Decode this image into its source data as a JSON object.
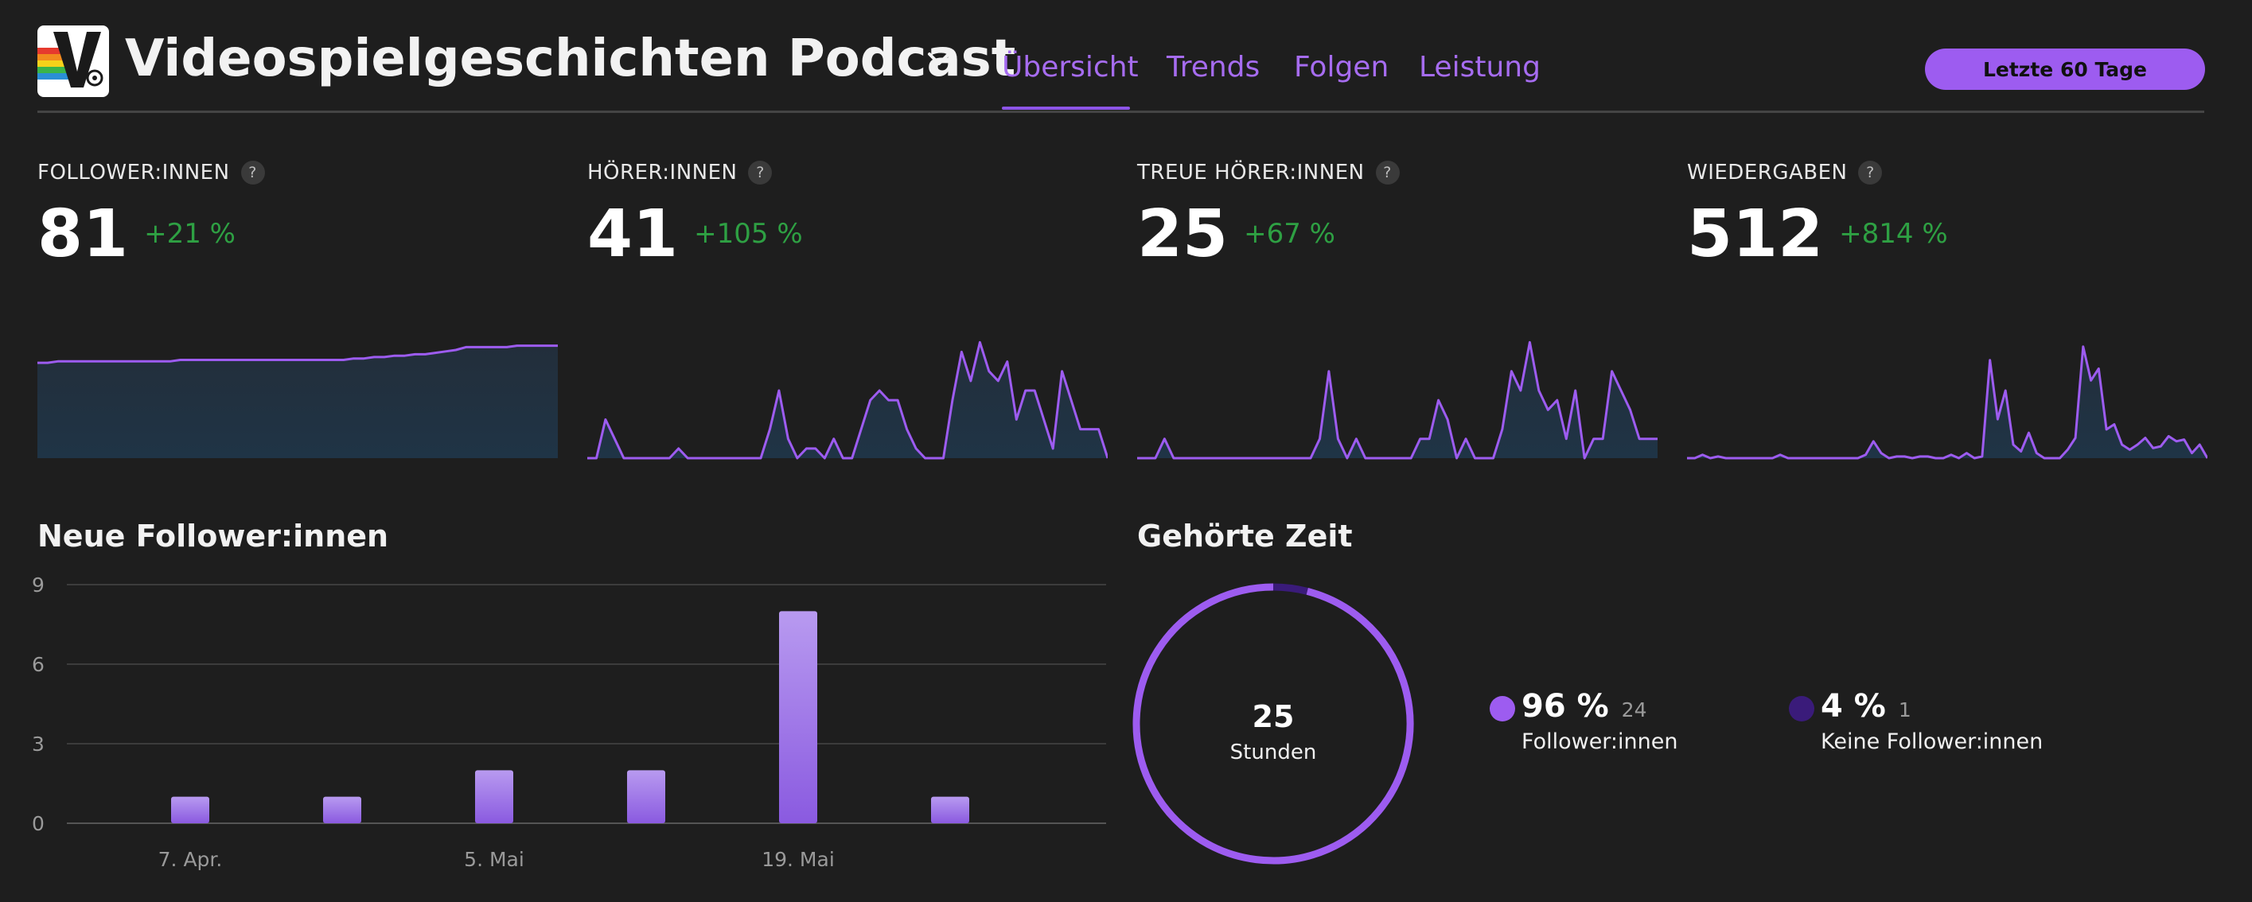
{
  "header": {
    "title": "Videospielgeschichten Podcast",
    "tabs": [
      {
        "label": "Übersicht",
        "active": true
      },
      {
        "label": "Trends",
        "active": false
      },
      {
        "label": "Folgen",
        "active": false
      },
      {
        "label": "Leistung",
        "active": false
      }
    ],
    "range_label": "Letzte 60 Tage"
  },
  "colors": {
    "accent": "#9d5cf0",
    "positive": "#2ea043",
    "background": "#1e1e1e",
    "non_follower": "#3a1b7a"
  },
  "icons": {
    "logo": "podcast-logo",
    "dropdown": "chevron-down-icon",
    "help": "question-mark-icon"
  },
  "stats": [
    {
      "label": "FOLLOWER:INNEN",
      "value": "81",
      "delta": "+21 %"
    },
    {
      "label": "HÖRER:INNEN",
      "value": "41",
      "delta": "+105 %"
    },
    {
      "label": "TREUE HÖRER:INNEN",
      "value": "25",
      "delta": "+67 %"
    },
    {
      "label": "WIEDERGABEN",
      "value": "512",
      "delta": "+814 %"
    }
  ],
  "new_followers_title": "Neue Follower:innen",
  "listened_time_title": "Gehörte Zeit",
  "donut": {
    "center_value": "25",
    "center_label": "Stunden",
    "legend": [
      {
        "pct": "96 %",
        "count": "24",
        "label": "Follower:innen"
      },
      {
        "pct": "4 %",
        "count": "1",
        "label": "Keine Follower:innen"
      }
    ]
  },
  "chart_data": [
    {
      "type": "area",
      "series": [
        {
          "values": [
            67,
            67,
            68,
            68,
            68,
            68,
            68,
            68,
            68,
            68,
            68,
            68,
            68,
            68,
            69,
            69,
            69,
            69,
            69,
            69,
            69,
            69,
            69,
            69,
            69,
            69,
            69,
            69,
            69,
            69,
            69,
            70,
            70,
            71,
            71,
            72,
            72,
            73,
            73,
            74,
            75,
            76,
            78,
            78,
            78,
            78,
            78,
            79,
            79,
            79,
            79,
            79
          ]
        }
      ],
      "ylim": [
        0,
        95
      ]
    },
    {
      "type": "area",
      "series": [
        {
          "values": [
            0,
            0,
            4,
            2,
            0,
            0,
            0,
            0,
            0,
            0,
            1,
            0,
            0,
            0,
            0,
            0,
            0,
            0,
            0,
            0,
            3,
            7,
            2,
            0,
            1,
            1,
            0,
            2,
            0,
            0,
            3,
            6,
            7,
            6,
            6,
            3,
            1,
            0,
            0,
            0,
            6,
            11,
            8,
            12,
            9,
            8,
            10,
            4,
            7,
            7,
            4,
            1,
            9,
            6,
            3,
            3,
            3,
            0
          ]
        }
      ],
      "ylim": [
        0,
        14
      ]
    },
    {
      "type": "area",
      "series": [
        {
          "values": [
            0,
            0,
            0,
            2,
            0,
            0,
            0,
            0,
            0,
            0,
            0,
            0,
            0,
            0,
            0,
            0,
            0,
            0,
            0,
            0,
            2,
            9,
            2,
            0,
            2,
            0,
            0,
            0,
            0,
            0,
            0,
            2,
            2,
            6,
            4,
            0,
            2,
            0,
            0,
            0,
            3,
            9,
            7,
            12,
            7,
            5,
            6,
            2,
            7,
            0,
            2,
            2,
            9,
            7,
            5,
            2,
            2,
            2
          ]
        }
      ],
      "ylim": [
        0,
        14
      ]
    },
    {
      "type": "area",
      "series": [
        {
          "values": [
            0,
            0,
            2,
            0,
            1,
            0,
            0,
            0,
            0,
            0,
            0,
            0,
            2,
            0,
            0,
            0,
            0,
            0,
            0,
            0,
            0,
            0,
            0,
            2,
            10,
            3,
            0,
            1,
            1,
            0,
            1,
            1,
            0,
            0,
            2,
            0,
            3,
            0,
            1,
            58,
            23,
            40,
            8,
            4,
            15,
            3,
            0,
            0,
            0,
            5,
            12,
            66,
            46,
            53,
            17,
            20,
            8,
            5,
            8,
            12,
            6,
            7,
            13,
            10,
            11,
            3,
            8,
            0
          ]
        }
      ],
      "ylim": [
        0,
        80
      ]
    },
    {
      "type": "bar",
      "title": "Neue Follower:innen",
      "categories": [
        "",
        "7. Apr.",
        "",
        "5. Mai",
        "",
        "19. Mai",
        ""
      ],
      "values": [
        0,
        1,
        1,
        2,
        2,
        8,
        1
      ],
      "yticks": [
        0,
        3,
        6,
        9
      ],
      "ylim": [
        0,
        9
      ],
      "grid": true
    },
    {
      "type": "pie",
      "title": "Gehörte Zeit",
      "labels": [
        "Follower:innen",
        "Keine Follower:innen"
      ],
      "values": [
        96,
        4
      ],
      "counts": [
        24,
        1
      ],
      "center_text": "25 Stunden"
    }
  ]
}
